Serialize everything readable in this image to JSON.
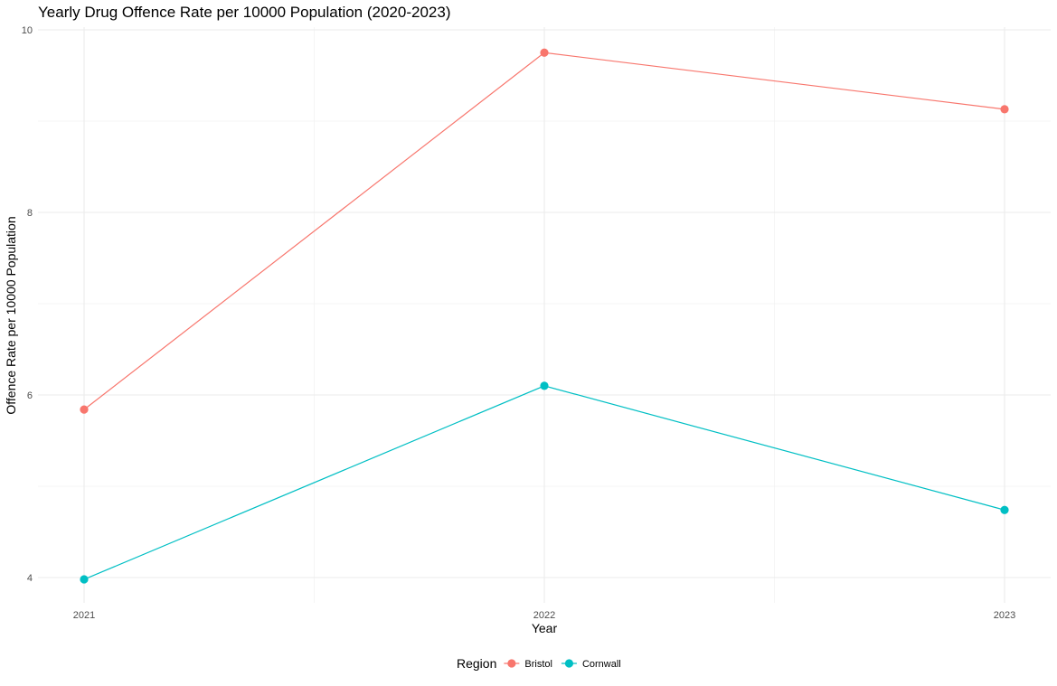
{
  "chart_data": {
    "type": "line",
    "title": "Yearly Drug Offence Rate per 10000 Population (2020-2023)",
    "xlabel": "Year",
    "ylabel": "Offence Rate per 10000 Population",
    "x": [
      2021,
      2022,
      2023
    ],
    "x_tick_labels": [
      "2021",
      "2022",
      "2023"
    ],
    "xlim": [
      2020.9,
      2023.1
    ],
    "ylim": [
      3.7,
      10.0
    ],
    "y_ticks": [
      4,
      6,
      8,
      10
    ],
    "y_tick_labels": [
      "4",
      "6",
      "8",
      "10"
    ],
    "grid": true,
    "legend": {
      "title": "Region",
      "placement": "bottom"
    },
    "series": [
      {
        "name": "Bristol",
        "color": "#F8766D",
        "values": [
          5.84,
          9.75,
          9.13
        ]
      },
      {
        "name": "Cornwall",
        "color": "#00BFC4",
        "values": [
          3.98,
          6.1,
          4.74
        ]
      }
    ]
  }
}
